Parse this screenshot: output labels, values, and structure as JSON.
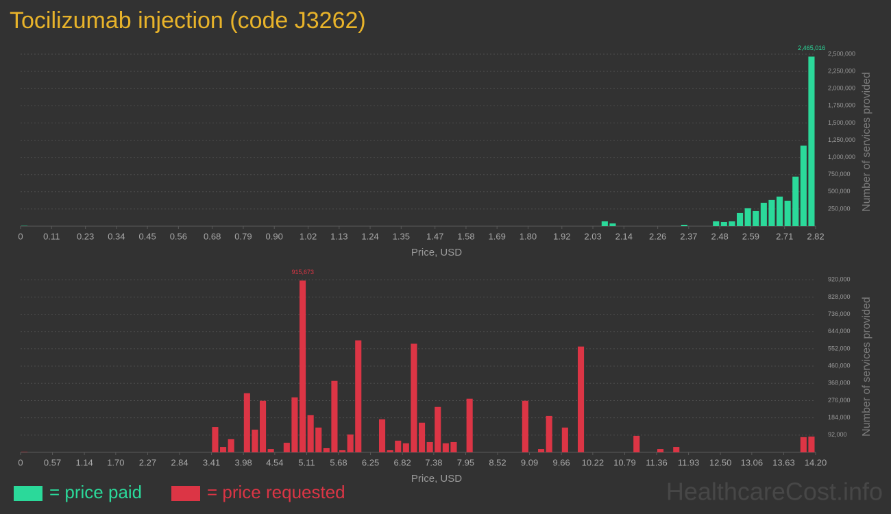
{
  "title": "Tocilizumab injection (code J3262)",
  "watermark": "HealthcareCost.info",
  "chart_data": [
    {
      "type": "histogram",
      "x_label": "Price, USD",
      "y_label": "Number of services provided",
      "grid": true,
      "bins": [
        0,
        0.0282,
        0.0564,
        0.0846,
        0.1128,
        0.141,
        0.1692,
        0.1974,
        0.2256,
        0.2538,
        0.282,
        0.3102,
        0.3384,
        0.3666,
        0.3948,
        0.423,
        0.4512,
        0.4794,
        0.5076,
        0.5358,
        0.564,
        0.5922,
        0.6204,
        0.6486,
        0.6768,
        0.705,
        0.7332,
        0.7614,
        0.7896,
        0.8178,
        0.846,
        0.8742,
        0.9024,
        0.9306,
        0.9588,
        0.987,
        1.0152,
        1.0434,
        1.0716,
        1.0998,
        1.128,
        1.1562,
        1.1844,
        1.2126,
        1.2408,
        1.269,
        1.2972,
        1.3254,
        1.3536,
        1.3818,
        1.41,
        1.4382,
        1.4664,
        1.4946,
        1.5228,
        1.551,
        1.5792,
        1.6074,
        1.6356,
        1.6638,
        1.692,
        1.7202,
        1.7484,
        1.7766,
        1.8048,
        1.833,
        1.8612,
        1.8894,
        1.9176,
        1.9458,
        1.974,
        2.0022,
        2.0304,
        2.0586,
        2.0868,
        2.115,
        2.1432,
        2.1714,
        2.1996,
        2.2278,
        2.256,
        2.2842,
        2.3124,
        2.3406,
        2.3688,
        2.397,
        2.4252,
        2.4534,
        2.4816,
        2.5098,
        2.538,
        2.5662,
        2.5944,
        2.6226,
        2.6508,
        2.679,
        2.7072,
        2.7354,
        2.7636,
        2.7918,
        2.82
      ],
      "series": [
        {
          "name": "= price paid",
          "color": "#2bd99a",
          "values": [
            5000,
            0,
            0,
            0,
            0,
            0,
            0,
            0,
            0,
            0,
            0,
            0,
            0,
            0,
            0,
            0,
            0,
            0,
            0,
            0,
            0,
            0,
            0,
            0,
            0,
            0,
            0,
            0,
            0,
            0,
            0,
            0,
            0,
            0,
            0,
            0,
            0,
            0,
            0,
            0,
            0,
            0,
            0,
            0,
            0,
            0,
            0,
            0,
            0,
            0,
            0,
            0,
            0,
            0,
            0,
            0,
            0,
            0,
            0,
            0,
            0,
            0,
            0,
            0,
            0,
            0,
            0,
            0,
            0,
            0,
            0,
            0,
            0,
            70000,
            40000,
            0,
            0,
            0,
            0,
            0,
            0,
            0,
            0,
            20000,
            0,
            0,
            0,
            70000,
            60000,
            70000,
            190000,
            260000,
            220000,
            340000,
            380000,
            430000,
            370000,
            720000,
            1170000,
            2465016
          ],
          "value_labels": [
            null,
            null,
            null,
            null,
            null,
            null,
            null,
            null,
            null,
            null,
            null,
            null,
            null,
            null,
            null,
            null,
            null,
            null,
            null,
            null,
            null,
            null,
            null,
            null,
            null,
            null,
            null,
            null,
            null,
            null,
            null,
            null,
            null,
            null,
            null,
            null,
            null,
            null,
            null,
            null,
            null,
            null,
            null,
            null,
            null,
            null,
            null,
            null,
            null,
            null,
            null,
            null,
            null,
            null,
            null,
            null,
            null,
            null,
            null,
            null,
            null,
            null,
            null,
            null,
            null,
            null,
            null,
            null,
            null,
            null,
            null,
            null,
            null,
            null,
            null,
            null,
            null,
            null,
            null,
            null,
            null,
            null,
            null,
            null,
            null,
            null,
            null,
            null,
            null,
            null,
            null,
            null,
            null,
            null,
            null,
            null,
            null,
            null,
            null,
            "2,465,016"
          ]
        }
      ],
      "xlim": [
        0,
        2.82
      ],
      "xticks": [
        0,
        0.11,
        0.23,
        0.34,
        0.45,
        0.56,
        0.68,
        0.79,
        {
          "value": 0.9,
          "label": "0.90"
        },
        1.02,
        1.13,
        1.24,
        1.35,
        1.47,
        1.58,
        1.69,
        {
          "value": 1.8,
          "label": "1.80"
        },
        1.92,
        2.03,
        2.14,
        2.26,
        2.37,
        2.48,
        2.59,
        2.71,
        2.82
      ],
      "ylim": [
        0,
        2550000
      ],
      "yticks": [
        {
          "value": 250000,
          "label": "250,000"
        },
        {
          "value": 500000,
          "label": "500,000"
        },
        {
          "value": 750000,
          "label": "750,000"
        },
        {
          "value": 1000000,
          "label": "1,000,000"
        },
        {
          "value": 1250000,
          "label": "1,250,000"
        },
        {
          "value": 1500000,
          "label": "1,500,000"
        },
        {
          "value": 1750000,
          "label": "1,750,000"
        },
        {
          "value": 2000000,
          "label": "2,000,000"
        },
        {
          "value": 2250000,
          "label": "2,250,000"
        },
        {
          "value": 2500000,
          "label": "2,500,000"
        }
      ]
    },
    {
      "type": "histogram",
      "x_label": "Price, USD",
      "y_label": "Number of services provided",
      "grid": true,
      "bins": [
        0,
        0.142,
        0.284,
        0.426,
        0.568,
        0.71,
        0.852,
        0.994,
        1.136,
        1.278,
        1.42,
        1.562,
        1.704,
        1.846,
        1.988,
        2.13,
        2.272,
        2.414,
        2.556,
        2.698,
        2.84,
        2.982,
        3.124,
        3.266,
        3.408,
        3.55,
        3.692,
        3.834,
        3.976,
        4.118,
        4.26,
        4.402,
        4.544,
        4.686,
        4.828,
        4.97,
        5.112,
        5.254,
        5.396,
        5.538,
        5.68,
        5.822,
        5.964,
        6.106,
        6.248,
        6.39,
        6.532,
        6.674,
        6.816,
        6.958,
        7.1,
        7.242,
        7.384,
        7.526,
        7.668,
        7.81,
        7.952,
        8.094,
        8.236,
        8.378,
        8.52,
        8.662,
        8.804,
        8.946,
        9.088,
        9.23,
        9.372,
        9.514,
        9.656,
        9.798,
        9.94,
        10.082,
        10.224,
        10.366,
        10.508,
        10.65,
        10.792,
        10.934,
        11.076,
        11.218,
        11.36,
        11.502,
        11.644,
        11.786,
        11.928,
        12.07,
        12.212,
        12.354,
        12.496,
        12.638,
        12.78,
        12.922,
        13.064,
        13.206,
        13.348,
        13.49,
        13.632,
        13.774,
        13.916,
        14.058,
        14.2
      ],
      "series": [
        {
          "name": "= price requested",
          "color": "#dc3545",
          "values": [
            2000,
            0,
            0,
            0,
            0,
            0,
            0,
            0,
            0,
            0,
            0,
            0,
            0,
            0,
            0,
            0,
            0,
            0,
            0,
            0,
            0,
            0,
            0,
            0,
            135000,
            29000,
            70000,
            0,
            315000,
            121000,
            275000,
            18000,
            0,
            51000,
            293000,
            915673,
            198000,
            132000,
            22000,
            381000,
            11000,
            95000,
            597000,
            0,
            0,
            176000,
            11000,
            62000,
            48000,
            579000,
            158000,
            55000,
            242000,
            48000,
            55000,
            0,
            286000,
            0,
            0,
            0,
            0,
            0,
            0,
            275000,
            0,
            18000,
            194000,
            0,
            132000,
            0,
            564000,
            0,
            0,
            0,
            0,
            0,
            0,
            88000,
            0,
            0,
            18000,
            0,
            29000,
            0,
            0,
            0,
            0,
            0,
            0,
            0,
            0,
            0,
            0,
            0,
            0,
            0,
            0,
            0,
            81000,
            84000
          ],
          "value_labels": [
            null,
            null,
            null,
            null,
            null,
            null,
            null,
            null,
            null,
            null,
            null,
            null,
            null,
            null,
            null,
            null,
            null,
            null,
            null,
            null,
            null,
            null,
            null,
            null,
            null,
            null,
            null,
            null,
            null,
            null,
            null,
            null,
            null,
            null,
            null,
            "915,673",
            null,
            null,
            null,
            null,
            null,
            null,
            null,
            null,
            null,
            null,
            null,
            null,
            null,
            null,
            null,
            null,
            null,
            null,
            null,
            null,
            null,
            null,
            null,
            null,
            null,
            null,
            null,
            null,
            null,
            null,
            null,
            null,
            null,
            null,
            null,
            null,
            null,
            null,
            null,
            null,
            null,
            null,
            null,
            null,
            null,
            null,
            null,
            null,
            null,
            null,
            null,
            null,
            null,
            null,
            null,
            null,
            null,
            null,
            null,
            null,
            null,
            null,
            null,
            null
          ]
        }
      ],
      "xlim": [
        0,
        14.2
      ],
      "xticks": [
        0,
        0.57,
        1.14,
        {
          "value": 1.7,
          "label": "1.70"
        },
        2.27,
        2.84,
        3.41,
        3.98,
        4.54,
        5.11,
        5.68,
        6.25,
        6.82,
        7.38,
        7.95,
        8.52,
        9.09,
        9.66,
        10.22,
        10.79,
        11.36,
        11.93,
        {
          "value": 12.5,
          "label": "12.50"
        },
        13.06,
        13.63,
        {
          "value": 14.2,
          "label": "14.20"
        }
      ],
      "ylim": [
        0,
        950000
      ],
      "yticks": [
        {
          "value": 92000,
          "label": "92,000"
        },
        {
          "value": 184000,
          "label": "184,000"
        },
        {
          "value": 276000,
          "label": "276,000"
        },
        {
          "value": 368000,
          "label": "368,000"
        },
        {
          "value": 460000,
          "label": "460,000"
        },
        {
          "value": 552000,
          "label": "552,000"
        },
        {
          "value": 644000,
          "label": "644,000"
        },
        {
          "value": 736000,
          "label": "736,000"
        },
        {
          "value": 828000,
          "label": "828,000"
        },
        {
          "value": 920000,
          "label": "920,000"
        }
      ]
    }
  ]
}
